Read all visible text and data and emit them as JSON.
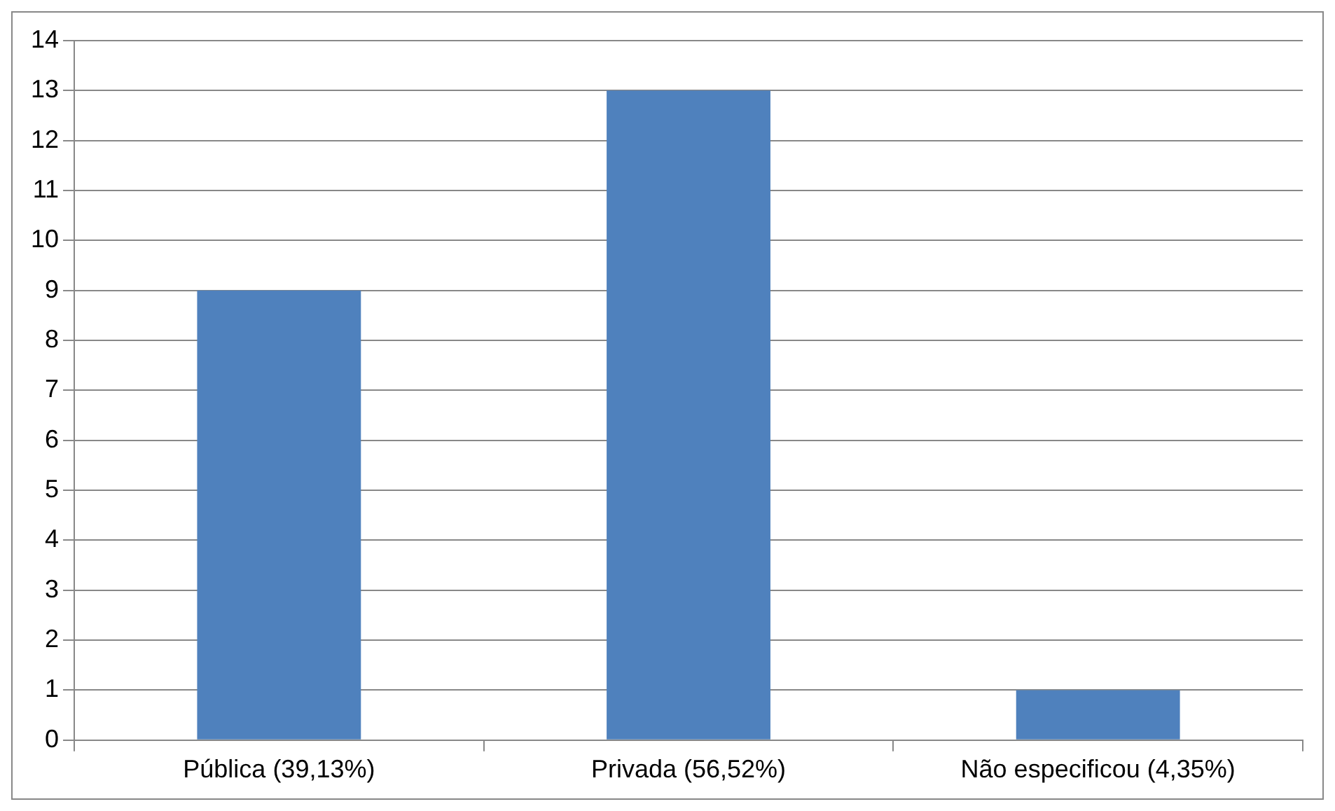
{
  "chart_data": {
    "type": "bar",
    "categories": [
      "Pública (39,13%)",
      "Privada (56,52%)",
      "Não especificou (4,35%)"
    ],
    "values": [
      9,
      13,
      1
    ],
    "color": "#4f81bd",
    "ylim": [
      0,
      14
    ],
    "yticks": [
      0,
      1,
      2,
      3,
      4,
      5,
      6,
      7,
      8,
      9,
      10,
      11,
      12,
      13,
      14
    ],
    "grid": "y",
    "legend": false
  }
}
